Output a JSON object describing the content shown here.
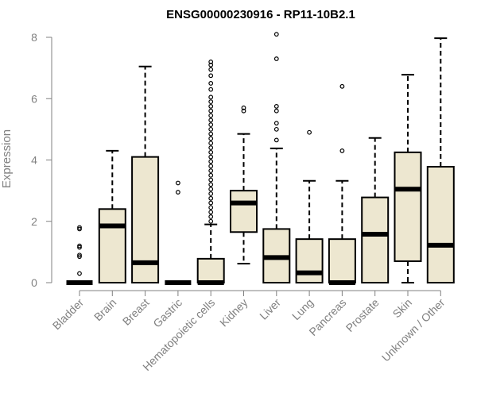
{
  "chart_data": {
    "type": "boxplot",
    "title": "ENSG00000230916 - RP11-10B2.1",
    "ylabel": "Expression",
    "xlabel": "",
    "ylim": [
      0,
      8
    ],
    "yticks": [
      0,
      2,
      4,
      6,
      8
    ],
    "grid": false,
    "colors": {
      "box_fill": "#ede7d0",
      "stroke": "#000000",
      "axis": "#808080"
    },
    "categories": [
      "Bladder",
      "Brain",
      "Breast",
      "Gastric",
      "Hematopoietic cells",
      "Kidney",
      "Liver",
      "Lung",
      "Pancreas",
      "Prostate",
      "Skin",
      "Unknown / Other"
    ],
    "boxes": [
      {
        "q1": 0,
        "median": 0,
        "q3": 0,
        "whisker_low": 0,
        "whisker_high": 0,
        "outliers": [
          0.3,
          0.85,
          0.9,
          1.15,
          1.2,
          1.75,
          1.8
        ]
      },
      {
        "q1": 0,
        "median": 1.85,
        "q3": 2.4,
        "whisker_low": 0,
        "whisker_high": 4.3,
        "outliers": []
      },
      {
        "q1": 0,
        "median": 0.65,
        "q3": 4.1,
        "whisker_low": 0,
        "whisker_high": 7.05,
        "outliers": []
      },
      {
        "q1": 0,
        "median": 0,
        "q3": 0,
        "whisker_low": 0,
        "whisker_high": 0,
        "outliers": [
          2.95,
          3.25
        ]
      },
      {
        "q1": 0,
        "median": 0,
        "q3": 0.78,
        "whisker_low": 0,
        "whisker_high": 1.9,
        "outliers": [
          2.0,
          2.15,
          2.3,
          2.45,
          2.6,
          2.75,
          2.9,
          3.05,
          3.2,
          3.35,
          3.5,
          3.65,
          3.8,
          3.95,
          4.1,
          4.25,
          4.4,
          4.55,
          4.7,
          4.85,
          5.0,
          5.15,
          5.3,
          5.45,
          5.6,
          5.75,
          5.9,
          6.05,
          6.3,
          6.5,
          6.75,
          6.95,
          7.1,
          7.2
        ]
      },
      {
        "q1": 1.65,
        "median": 2.6,
        "q3": 3.0,
        "whisker_low": 0.62,
        "whisker_high": 4.85,
        "outliers": [
          5.6,
          5.7
        ]
      },
      {
        "q1": 0,
        "median": 0.82,
        "q3": 1.75,
        "whisker_low": 0,
        "whisker_high": 4.38,
        "outliers": [
          4.65,
          5.0,
          5.2,
          5.6,
          5.75,
          7.3,
          8.1
        ]
      },
      {
        "q1": 0,
        "median": 0.32,
        "q3": 1.42,
        "whisker_low": 0,
        "whisker_high": 3.32,
        "outliers": [
          4.9
        ]
      },
      {
        "q1": 0,
        "median": 0,
        "q3": 1.42,
        "whisker_low": 0,
        "whisker_high": 3.32,
        "outliers": [
          4.3,
          6.4
        ]
      },
      {
        "q1": 0,
        "median": 1.58,
        "q3": 2.78,
        "whisker_low": 0,
        "whisker_high": 4.72,
        "outliers": []
      },
      {
        "q1": 0.7,
        "median": 3.05,
        "q3": 4.25,
        "whisker_low": 0,
        "whisker_high": 6.78,
        "outliers": []
      },
      {
        "q1": 0,
        "median": 1.22,
        "q3": 3.78,
        "whisker_low": 0,
        "whisker_high": 7.97,
        "outliers": []
      }
    ]
  }
}
